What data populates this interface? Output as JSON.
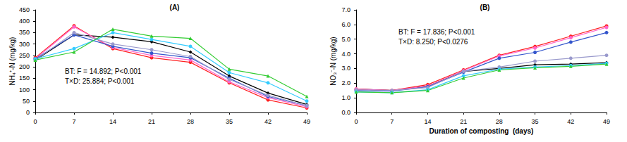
{
  "chart_data": [
    {
      "type": "line",
      "title": "(A)",
      "y_label": "NH₄⁺-N (mg/kg)",
      "annotations": [
        "BT: F = 14.892; P<0.001",
        "T×D: 25.884; P<0.001"
      ],
      "x": [
        0,
        7,
        14,
        21,
        28,
        35,
        42,
        49
      ],
      "xlim": [
        0,
        49
      ],
      "xticks": [
        0,
        7,
        14,
        21,
        28,
        35,
        42,
        49
      ],
      "ylim": [
        0,
        450
      ],
      "yticks": [
        0,
        50,
        100,
        150,
        200,
        250,
        300,
        350,
        400,
        450
      ],
      "grid": false,
      "series": [
        {
          "color": "#000000",
          "marker": "diamond",
          "line_style": "solid",
          "values": [
            230,
            340,
            330,
            310,
            265,
            160,
            85,
            35
          ]
        },
        {
          "color": "#ff2020",
          "marker": "circle",
          "line_style": "solid",
          "values": [
            240,
            380,
            280,
            240,
            220,
            130,
            55,
            20
          ]
        },
        {
          "color": "#ff66cc",
          "marker": "circle",
          "line_style": "solid",
          "values": [
            235,
            375,
            285,
            250,
            230,
            135,
            65,
            25
          ]
        },
        {
          "color": "#3355cc",
          "marker": "circle",
          "line_style": "solid",
          "values": [
            235,
            340,
            290,
            260,
            240,
            150,
            70,
            30
          ]
        },
        {
          "color": "#9999cc",
          "marker": "circle",
          "line_style": "solid",
          "values": [
            230,
            350,
            300,
            275,
            245,
            145,
            75,
            30
          ]
        },
        {
          "color": "#33ccff",
          "marker": "circle",
          "line_style": "solid",
          "values": [
            235,
            280,
            350,
            320,
            290,
            175,
            130,
            50
          ]
        },
        {
          "color": "#33cc33",
          "marker": "triangle",
          "line_style": "solid",
          "values": [
            230,
            265,
            365,
            335,
            325,
            190,
            160,
            70
          ]
        }
      ]
    },
    {
      "type": "line",
      "title": "(B)",
      "y_label": "NO₃⁻-N (mg/kg)",
      "x_label": "Duration of composting  (days)",
      "annotations": [
        "BT: F = 17.836; P<0.001",
        "T×D: 8.250; P<0.0276"
      ],
      "x": [
        0,
        7,
        14,
        21,
        28,
        35,
        42,
        49
      ],
      "xlim": [
        0,
        49
      ],
      "xticks": [
        0,
        7,
        14,
        21,
        28,
        35,
        42,
        49
      ],
      "ylim": [
        0,
        7
      ],
      "yticks": [
        {
          "value": 0,
          "label": "0.0"
        },
        {
          "value": 1,
          "label": "1.0"
        },
        {
          "value": 2,
          "label": "2.0"
        },
        {
          "value": 3,
          "label": "3.0"
        },
        {
          "value": 4,
          "label": "4.0"
        },
        {
          "value": 5,
          "label": "5.0"
        },
        {
          "value": 6,
          "label": "6.0"
        },
        {
          "value": 7,
          "label": "7.0"
        }
      ],
      "grid": false,
      "series": [
        {
          "color": "#000000",
          "marker": "diamond",
          "line_style": "solid",
          "values": [
            1.6,
            1.5,
            1.8,
            2.8,
            3.0,
            3.25,
            3.3,
            3.4
          ]
        },
        {
          "color": "#ff2020",
          "marker": "circle",
          "line_style": "solid",
          "values": [
            1.6,
            1.5,
            1.9,
            2.9,
            3.9,
            4.5,
            5.2,
            5.9
          ]
        },
        {
          "color": "#ff66cc",
          "marker": "circle",
          "line_style": "solid",
          "values": [
            1.6,
            1.5,
            1.8,
            2.85,
            3.85,
            4.4,
            5.1,
            5.8
          ]
        },
        {
          "color": "#3355cc",
          "marker": "circle",
          "line_style": "solid",
          "values": [
            1.5,
            1.45,
            1.75,
            2.75,
            3.7,
            4.1,
            4.8,
            5.45
          ]
        },
        {
          "color": "#9999cc",
          "marker": "circle",
          "line_style": "solid",
          "values": [
            1.55,
            1.5,
            1.7,
            2.8,
            3.1,
            3.5,
            3.7,
            3.9
          ]
        },
        {
          "color": "#33ccff",
          "marker": "circle",
          "line_style": "solid",
          "values": [
            1.4,
            1.35,
            1.55,
            2.5,
            2.95,
            3.1,
            3.2,
            3.35
          ]
        },
        {
          "color": "#33cc33",
          "marker": "triangle",
          "line_style": "solid",
          "values": [
            1.4,
            1.35,
            1.5,
            2.35,
            2.9,
            3.05,
            3.15,
            3.3
          ]
        }
      ]
    }
  ]
}
